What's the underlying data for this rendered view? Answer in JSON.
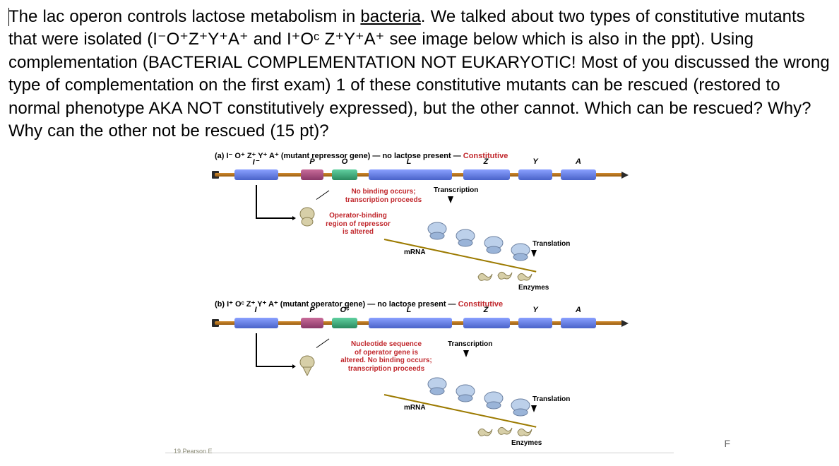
{
  "question": {
    "s1_pre": "The lac operon controls lactose metabolism in ",
    "s1_u": "bacteria",
    "s1_post": ".  We talked about two types of constitutive mutants that were isolated (I",
    "geno1": "⁻O⁺Z⁺Y⁺A⁺",
    "and": " and I",
    "geno2": "⁺Oᶜ Z⁺Y⁺A⁺",
    "s2": " see image below which is also in the ppt).  Using complementation (BACTERIAL COMPLEMENTATION NOT EUKARYOTIC! Most of you discussed the wrong type of complementation on the first exam) 1 of these constitutive mutants can be rescued (restored to normal phenotype AKA NOT constitutively expressed), but the other cannot.  Which can be rescued?  Why?  Why can the other not be rescued (15 pt)?"
  },
  "figure": {
    "copyright": "19 Pearson E",
    "footer_f": "F",
    "panel_a": {
      "caption_pre": "(a) I⁻ O⁺ Z⁺ Y⁺ A⁺ (mutant repressor gene) — no lactose present — ",
      "caption_const": "Constitutive",
      "labels": {
        "I": "I⁻",
        "P": "P",
        "O": "O",
        "L": "L",
        "Z": "Z",
        "Y": "Y",
        "A": "A"
      },
      "sub1": "No binding occurs;\ntranscription proceeds",
      "sub2": "Operator-binding\nregion of repressor\nis altered",
      "transcription": "Transcription",
      "translation": "Translation",
      "mrna": "mRNA",
      "enzymes": "Enzymes"
    },
    "panel_b": {
      "caption_pre": "(b) I⁺ Oᶜ Z⁺ Y⁺ A⁺ (mutant operator gene) — no lactose present — ",
      "caption_const": "Constitutive",
      "labels": {
        "I": "I",
        "P": "P",
        "O": "Oᶜ",
        "L": "L",
        "Z": "Z",
        "Y": "Y",
        "A": "A"
      },
      "sub1": "Nucleotide sequence\nof operator gene is\naltered. No binding occurs;\ntranscription proceeds",
      "transcription": "Transcription",
      "translation": "Translation",
      "mrna": "mRNA",
      "enzymes": "Enzymes"
    }
  }
}
